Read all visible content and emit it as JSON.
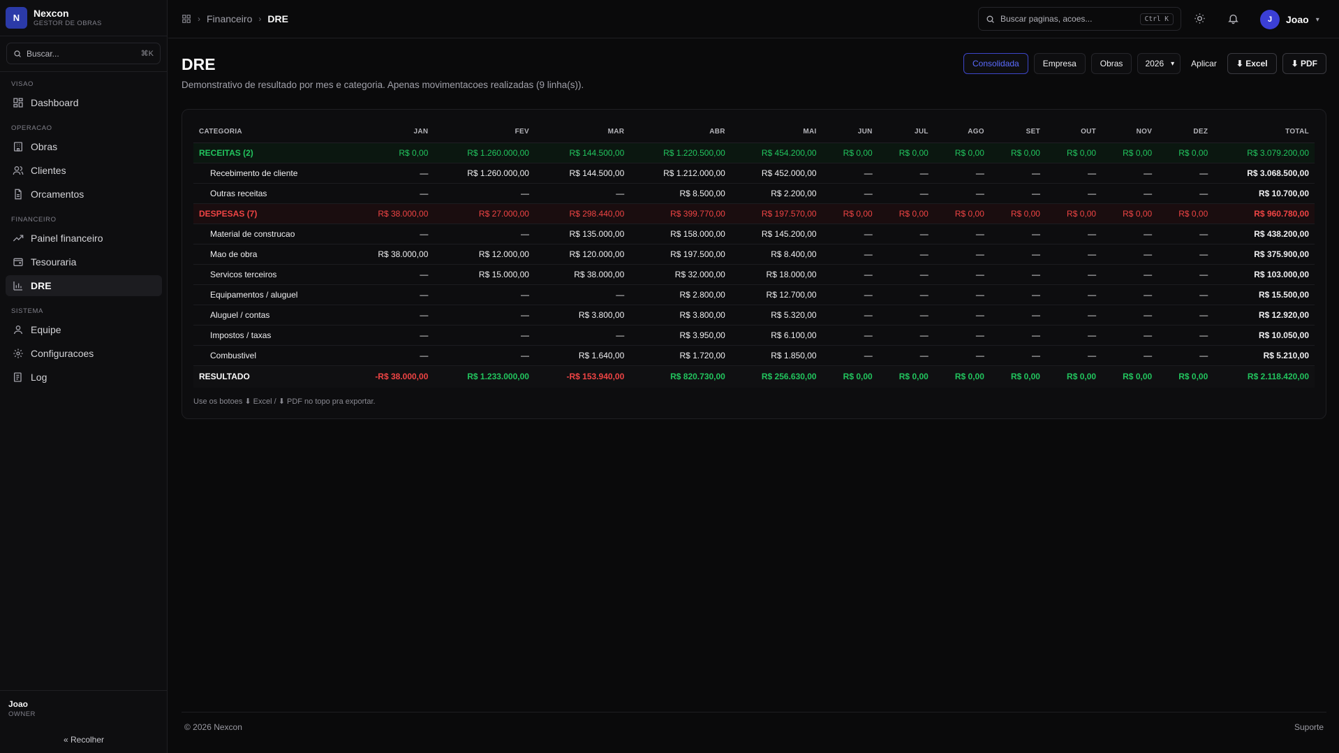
{
  "brand": {
    "logo_letter": "N",
    "name": "Nexcon",
    "subtitle": "GESTOR DE OBRAS"
  },
  "sidebar": {
    "search_placeholder": "Buscar...",
    "search_shortcut": "⌘K",
    "sections": [
      {
        "label": "VISAO",
        "items": [
          {
            "label": "Dashboard",
            "icon": "grid-icon"
          }
        ]
      },
      {
        "label": "OPERACAO",
        "items": [
          {
            "label": "Obras",
            "icon": "building-icon"
          },
          {
            "label": "Clientes",
            "icon": "users-icon"
          },
          {
            "label": "Orcamentos",
            "icon": "file-icon"
          }
        ]
      },
      {
        "label": "FINANCEIRO",
        "items": [
          {
            "label": "Painel financeiro",
            "icon": "trend-icon"
          },
          {
            "label": "Tesouraria",
            "icon": "wallet-icon"
          },
          {
            "label": "DRE",
            "icon": "bar-chart-icon",
            "active": true
          }
        ]
      },
      {
        "label": "SISTEMA",
        "items": [
          {
            "label": "Equipe",
            "icon": "user-icon"
          },
          {
            "label": "Configuracoes",
            "icon": "gear-icon"
          },
          {
            "label": "Log",
            "icon": "log-icon"
          }
        ]
      }
    ],
    "user_name": "Joao",
    "user_role": "OWNER",
    "collapse_label": "Recolher"
  },
  "topbar": {
    "breadcrumb": [
      "Financeiro",
      "DRE"
    ],
    "search_placeholder": "Buscar paginas, acoes...",
    "search_shortcut": "Ctrl K",
    "user_initial": "J",
    "user_name": "Joao"
  },
  "page": {
    "title": "DRE",
    "description": "Demonstrativo de resultado por mes e categoria. Apenas movimentacoes realizadas (9 linha(s)).",
    "actions": {
      "consolidada": "Consolidada",
      "empresa": "Empresa",
      "obras": "Obras",
      "year": "2026",
      "aplicar": "Aplicar",
      "excel": "⬇ Excel",
      "pdf": "⬇ PDF"
    },
    "note": "Use os botoes ⬇ Excel / ⬇ PDF no topo pra exportar."
  },
  "table": {
    "headers": [
      "CATEGORIA",
      "JAN",
      "FEV",
      "MAR",
      "ABR",
      "MAI",
      "JUN",
      "JUL",
      "AGO",
      "SET",
      "OUT",
      "NOV",
      "DEZ",
      "TOTAL"
    ],
    "rows": [
      {
        "type": "rec",
        "cells": [
          "RECEITAS (2)",
          "R$ 0,00",
          "R$ 1.260.000,00",
          "R$ 144.500,00",
          "R$ 1.220.500,00",
          "R$ 454.200,00",
          "R$ 0,00",
          "R$ 0,00",
          "R$ 0,00",
          "R$ 0,00",
          "R$ 0,00",
          "R$ 0,00",
          "R$ 0,00",
          "R$ 3.079.200,00"
        ]
      },
      {
        "type": "sub",
        "cells": [
          "Recebimento de cliente",
          "—",
          "R$ 1.260.000,00",
          "R$ 144.500,00",
          "R$ 1.212.000,00",
          "R$ 452.000,00",
          "—",
          "—",
          "—",
          "—",
          "—",
          "—",
          "—",
          "R$ 3.068.500,00"
        ]
      },
      {
        "type": "sub",
        "cells": [
          "Outras receitas",
          "—",
          "—",
          "—",
          "R$ 8.500,00",
          "R$ 2.200,00",
          "—",
          "—",
          "—",
          "—",
          "—",
          "—",
          "—",
          "R$ 10.700,00"
        ]
      },
      {
        "type": "des",
        "cells": [
          "DESPESAS (7)",
          "R$ 38.000,00",
          "R$ 27.000,00",
          "R$ 298.440,00",
          "R$ 399.770,00",
          "R$ 197.570,00",
          "R$ 0,00",
          "R$ 0,00",
          "R$ 0,00",
          "R$ 0,00",
          "R$ 0,00",
          "R$ 0,00",
          "R$ 0,00",
          "R$ 960.780,00"
        ]
      },
      {
        "type": "sub",
        "cells": [
          "Material de construcao",
          "—",
          "—",
          "R$ 135.000,00",
          "R$ 158.000,00",
          "R$ 145.200,00",
          "—",
          "—",
          "—",
          "—",
          "—",
          "—",
          "—",
          "R$ 438.200,00"
        ]
      },
      {
        "type": "sub",
        "cells": [
          "Mao de obra",
          "R$ 38.000,00",
          "R$ 12.000,00",
          "R$ 120.000,00",
          "R$ 197.500,00",
          "R$ 8.400,00",
          "—",
          "—",
          "—",
          "—",
          "—",
          "—",
          "—",
          "R$ 375.900,00"
        ]
      },
      {
        "type": "sub",
        "cells": [
          "Servicos terceiros",
          "—",
          "R$ 15.000,00",
          "R$ 38.000,00",
          "R$ 32.000,00",
          "R$ 18.000,00",
          "—",
          "—",
          "—",
          "—",
          "—",
          "—",
          "—",
          "R$ 103.000,00"
        ]
      },
      {
        "type": "sub",
        "cells": [
          "Equipamentos / aluguel",
          "—",
          "—",
          "—",
          "R$ 2.800,00",
          "R$ 12.700,00",
          "—",
          "—",
          "—",
          "—",
          "—",
          "—",
          "—",
          "R$ 15.500,00"
        ]
      },
      {
        "type": "sub",
        "cells": [
          "Aluguel / contas",
          "—",
          "—",
          "R$ 3.800,00",
          "R$ 3.800,00",
          "R$ 5.320,00",
          "—",
          "—",
          "—",
          "—",
          "—",
          "—",
          "—",
          "R$ 12.920,00"
        ]
      },
      {
        "type": "sub",
        "cells": [
          "Impostos / taxas",
          "—",
          "—",
          "—",
          "R$ 3.950,00",
          "R$ 6.100,00",
          "—",
          "—",
          "—",
          "—",
          "—",
          "—",
          "—",
          "R$ 10.050,00"
        ]
      },
      {
        "type": "sub",
        "cells": [
          "Combustivel",
          "—",
          "—",
          "R$ 1.640,00",
          "R$ 1.720,00",
          "R$ 1.850,00",
          "—",
          "—",
          "—",
          "—",
          "—",
          "—",
          "—",
          "R$ 5.210,00"
        ]
      },
      {
        "type": "res",
        "cells": [
          "RESULTADO",
          "-R$ 38.000,00",
          "R$ 1.233.000,00",
          "-R$ 153.940,00",
          "R$ 820.730,00",
          "R$ 256.630,00",
          "R$ 0,00",
          "R$ 0,00",
          "R$ 0,00",
          "R$ 0,00",
          "R$ 0,00",
          "R$ 0,00",
          "R$ 0,00",
          "R$ 2.118.420,00"
        ]
      }
    ]
  },
  "footer": {
    "copyright": "© 2026 Nexcon",
    "support": "Suporte"
  },
  "colors": {
    "accent": "#3b3fd6",
    "positive": "#22c55e",
    "negative": "#ef4444"
  }
}
